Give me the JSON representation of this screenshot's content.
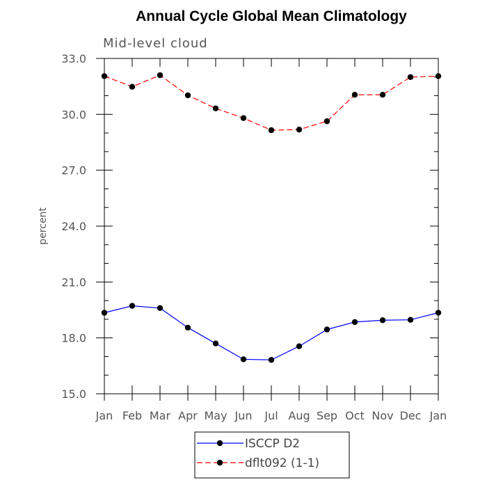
{
  "chart_data": {
    "type": "line",
    "title": "Annual Cycle Global Mean Climatology",
    "subtitle": "Mid-level cloud",
    "xlabel": "",
    "ylabel": "percent",
    "categories": [
      "Jan",
      "Feb",
      "Mar",
      "Apr",
      "May",
      "Jun",
      "Jul",
      "Aug",
      "Sep",
      "Oct",
      "Nov",
      "Dec",
      "Jan"
    ],
    "ylim": [
      15.0,
      33.0
    ],
    "yticks": [
      "15.0",
      "18.0",
      "21.0",
      "24.0",
      "27.0",
      "30.0",
      "33.0"
    ],
    "grid": false,
    "legend_position": "bottom-center",
    "series": [
      {
        "name": "ISCCP D2",
        "color": "#0000ff",
        "line_style": "solid",
        "marker": "circle",
        "values": [
          19.35,
          19.72,
          19.6,
          18.55,
          17.7,
          16.85,
          16.82,
          17.55,
          18.45,
          18.85,
          18.95,
          18.97,
          19.35
        ]
      },
      {
        "name": "dflt092 (1-1)",
        "color": "#ff0000",
        "line_style": "dashed",
        "marker": "circle",
        "values": [
          32.05,
          31.48,
          32.1,
          31.02,
          30.32,
          29.8,
          29.15,
          29.18,
          29.63,
          31.05,
          31.05,
          32.0,
          32.05
        ]
      }
    ]
  }
}
